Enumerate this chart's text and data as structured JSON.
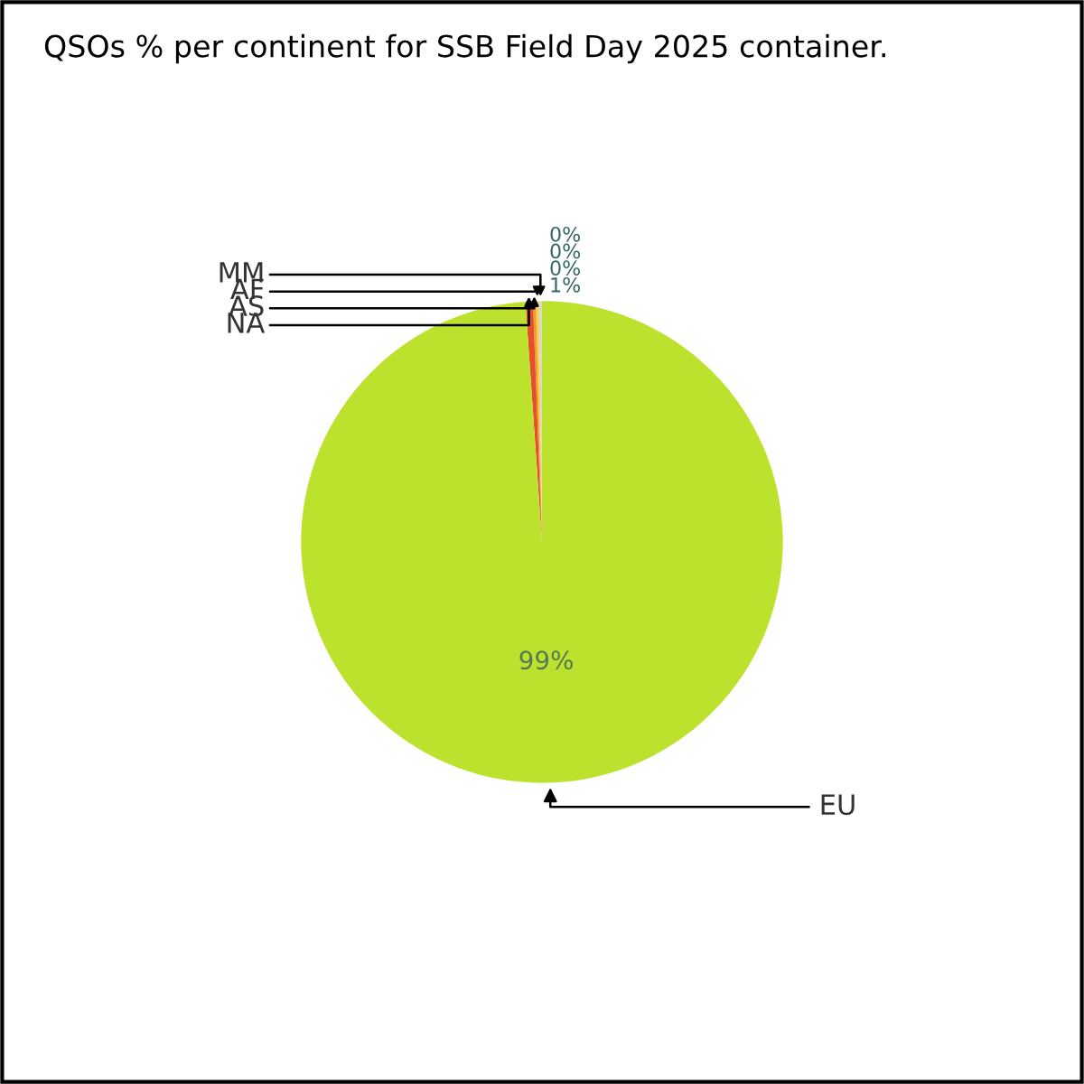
{
  "chart_data": {
    "type": "pie",
    "title": "QSOs % per continent for SSB Field Day 2025 container.",
    "categories": [
      "MM",
      "AF",
      "AS",
      "NA",
      "EU"
    ],
    "values": [
      0.2,
      0.2,
      0.2,
      0.5,
      98.9
    ],
    "colors": [
      "#d8d8d8",
      "#f3d34a",
      "#f39c2a",
      "#e4502a",
      "#bde22e"
    ],
    "value_labels": [
      "0%",
      "0%",
      "0%",
      "1%",
      "99%"
    ],
    "legend": false
  }
}
